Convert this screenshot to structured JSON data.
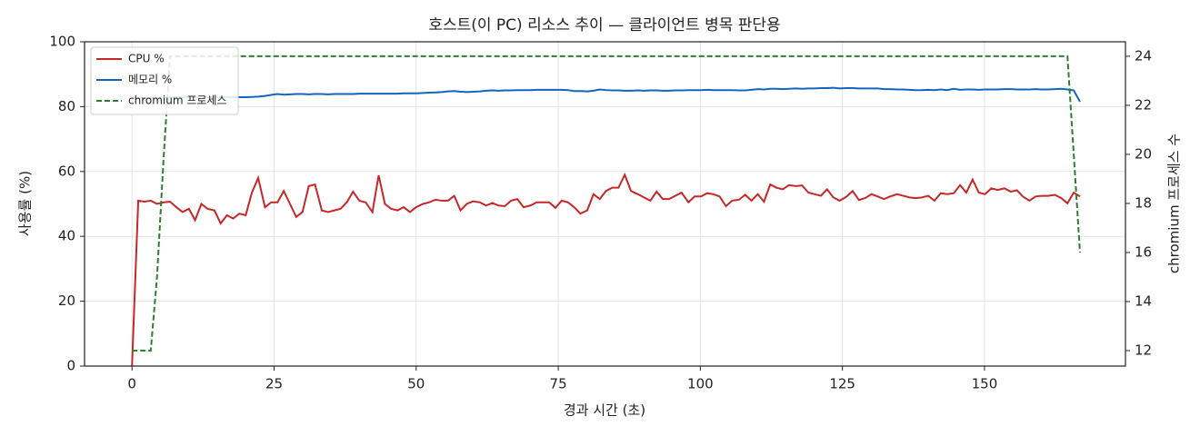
{
  "chart_data": {
    "type": "line",
    "title": "호스트(이 PC) 리소스 추이 — 클라이언트 병목 판단용",
    "xlabel": "경과 시간 (초)",
    "ylabel": "사용률 (%)",
    "y2label": "chromium 프로세스 수",
    "grid": true,
    "legend": "upper left",
    "xlim": [
      -8.35,
      174.8
    ],
    "xticks": [
      0,
      25,
      50,
      75,
      100,
      125,
      150
    ],
    "ylim": [
      0,
      100
    ],
    "yticks": [
      0,
      20,
      40,
      60,
      80,
      100
    ],
    "y2lim": [
      11.37,
      24.59
    ],
    "y2ticks": [
      12,
      14,
      16,
      18,
      20,
      22,
      24
    ],
    "x": [
      0,
      1.1,
      2.2,
      3.3,
      4.4,
      5.6,
      6.7,
      7.8,
      8.9,
      10.0,
      11.1,
      12.2,
      13.3,
      14.5,
      15.6,
      16.7,
      17.8,
      18.9,
      20.0,
      21.1,
      22.2,
      23.4,
      24.5,
      25.6,
      26.7,
      27.8,
      28.9,
      30.0,
      31.1,
      32.2,
      33.4,
      34.5,
      35.6,
      36.7,
      37.8,
      38.9,
      40.0,
      41.1,
      42.3,
      43.4,
      44.5,
      45.6,
      46.7,
      47.8,
      48.9,
      50.0,
      51.2,
      52.3,
      53.4,
      54.5,
      55.6,
      56.7,
      57.8,
      58.9,
      60.0,
      61.2,
      62.3,
      63.4,
      64.5,
      65.6,
      66.7,
      67.8,
      68.9,
      70.1,
      71.2,
      72.3,
      73.4,
      74.5,
      75.6,
      76.7,
      77.8,
      78.9,
      80.1,
      81.2,
      82.3,
      83.4,
      84.5,
      85.6,
      86.7,
      87.8,
      89.0,
      90.1,
      91.2,
      92.3,
      93.4,
      94.5,
      95.6,
      96.7,
      97.9,
      99.0,
      100.1,
      101.2,
      102.3,
      103.4,
      104.5,
      105.6,
      106.8,
      107.9,
      109.0,
      110.1,
      111.2,
      112.3,
      113.4,
      114.5,
      115.6,
      116.8,
      117.9,
      119.0,
      120.1,
      121.2,
      122.3,
      123.4,
      124.5,
      125.7,
      126.8,
      127.9,
      129.0,
      130.1,
      131.2,
      132.3,
      133.4,
      134.6,
      135.7,
      136.8,
      137.9,
      139.0,
      140.1,
      141.2,
      142.3,
      143.4,
      144.6,
      145.7,
      146.8,
      147.9,
      149.0,
      150.1,
      151.2,
      152.3,
      153.5,
      154.6,
      155.7,
      156.8,
      157.9,
      159.0,
      160.1,
      161.2,
      162.4,
      163.5,
      164.6,
      165.7,
      166.8
    ],
    "series": [
      {
        "name": "CPU %",
        "color": "#c62828",
        "linestyle": "solid",
        "axis": "y",
        "values": [
          0,
          51,
          50.7,
          51,
          50,
          50.5,
          50.7,
          49,
          47.5,
          48.5,
          45,
          50,
          48.5,
          48,
          44,
          46.5,
          45.5,
          47,
          46.5,
          53.5,
          58,
          49,
          50.5,
          50.5,
          54,
          50,
          46,
          47.5,
          55.5,
          56,
          48,
          47.5,
          48,
          48.5,
          50.5,
          53.8,
          51,
          50.5,
          47.5,
          58.8,
          50,
          48.5,
          48,
          49,
          47.5,
          49,
          50,
          50.5,
          51.3,
          51,
          51,
          52.5,
          48,
          50,
          50.8,
          50.5,
          49.5,
          50.3,
          49.5,
          49.3,
          51,
          51.5,
          49,
          49.5,
          50.5,
          50.5,
          50.5,
          48.8,
          51,
          50.5,
          49,
          47,
          48,
          53,
          51.5,
          54,
          55,
          55,
          59,
          54,
          53,
          52,
          51,
          53.8,
          51.5,
          51.5,
          52.5,
          53.5,
          50.5,
          52.3,
          52.3,
          53.3,
          53,
          52.3,
          49.3,
          51,
          51.3,
          52.8,
          51,
          53,
          50.7,
          56,
          55,
          54.5,
          55.8,
          55.5,
          55.7,
          53.5,
          53,
          52.5,
          54.5,
          52,
          51,
          52.2,
          54,
          51.2,
          51.8,
          53,
          52.3,
          51.5,
          52.3,
          53,
          52.5,
          52,
          51.8,
          52,
          52.5,
          51,
          53.3,
          53,
          53.3,
          55.8,
          53.5,
          57.5,
          53.5,
          53,
          54.8,
          54.3,
          54.8,
          53.8,
          54.2,
          52.2,
          51,
          52.3,
          52.5,
          52.5,
          52.8,
          51.8,
          50.2,
          53.5,
          52.3
        ]
      },
      {
        "name": "메모리 %",
        "color": "#1565c0",
        "linestyle": "solid",
        "axis": "y",
        "values": [
          82.5,
          82.6,
          82.7,
          82.7,
          82.8,
          82.8,
          82.8,
          82.9,
          82.9,
          82.9,
          82.9,
          82.9,
          82.9,
          82.9,
          82.9,
          82.9,
          82.9,
          82.9,
          82.9,
          83.0,
          83.1,
          83.3,
          83.6,
          83.9,
          83.7,
          83.8,
          83.9,
          83.9,
          83.8,
          83.9,
          83.9,
          83.8,
          83.9,
          83.9,
          83.9,
          83.9,
          84.0,
          84.0,
          84.0,
          84.0,
          84.0,
          84.0,
          84.0,
          84.1,
          84.1,
          84.1,
          84.2,
          84.3,
          84.4,
          84.5,
          84.7,
          84.8,
          84.6,
          84.5,
          84.6,
          84.7,
          84.9,
          85.0,
          84.9,
          85.0,
          85.0,
          85.1,
          85.1,
          85.1,
          85.2,
          85.2,
          85.2,
          85.2,
          85.2,
          85.1,
          84.8,
          84.8,
          84.7,
          84.9,
          85.3,
          85.1,
          85.0,
          85.0,
          84.9,
          84.9,
          85.0,
          84.9,
          85.0,
          85.0,
          84.9,
          84.9,
          85.0,
          85.0,
          85.1,
          85.1,
          85.1,
          85.2,
          85.1,
          85.1,
          85.1,
          85.1,
          85.0,
          85.0,
          85.2,
          85.4,
          85.3,
          85.5,
          85.5,
          85.4,
          85.5,
          85.6,
          85.5,
          85.6,
          85.6,
          85.7,
          85.7,
          85.8,
          85.6,
          85.7,
          85.7,
          85.6,
          85.6,
          85.6,
          85.6,
          85.4,
          85.4,
          85.3,
          85.3,
          85.2,
          85.1,
          85.1,
          85.2,
          85.1,
          85.3,
          85.1,
          85.5,
          85.2,
          85.3,
          85.3,
          85.2,
          85.3,
          85.3,
          85.3,
          85.4,
          85.4,
          85.3,
          85.3,
          85.3,
          85.4,
          85.3,
          85.3,
          85.4,
          85.5,
          85.3,
          85.0,
          81.5
        ]
      },
      {
        "name": "chromium 프로세스",
        "color": "#2e7d32",
        "linestyle": "dashed",
        "axis": "y2",
        "values": [
          12,
          12,
          12,
          12,
          15,
          20,
          24,
          24,
          24,
          24,
          24,
          24,
          24,
          24,
          24,
          24,
          24,
          24,
          24,
          24,
          24,
          24,
          24,
          24,
          24,
          24,
          24,
          24,
          24,
          24,
          24,
          24,
          24,
          24,
          24,
          24,
          24,
          24,
          24,
          24,
          24,
          24,
          24,
          24,
          24,
          24,
          24,
          24,
          24,
          24,
          24,
          24,
          24,
          24,
          24,
          24,
          24,
          24,
          24,
          24,
          24,
          24,
          24,
          24,
          24,
          24,
          24,
          24,
          24,
          24,
          24,
          24,
          24,
          24,
          24,
          24,
          24,
          24,
          24,
          24,
          24,
          24,
          24,
          24,
          24,
          24,
          24,
          24,
          24,
          24,
          24,
          24,
          24,
          24,
          24,
          24,
          24,
          24,
          24,
          24,
          24,
          24,
          24,
          24,
          24,
          24,
          24,
          24,
          24,
          24,
          24,
          24,
          24,
          24,
          24,
          24,
          24,
          24,
          24,
          24,
          24,
          24,
          24,
          24,
          24,
          24,
          24,
          24,
          24,
          24,
          24,
          24,
          24,
          24,
          24,
          24,
          24,
          24,
          24,
          24,
          24,
          24,
          24,
          24,
          24,
          24,
          24,
          24,
          24,
          20,
          16
        ]
      }
    ]
  }
}
